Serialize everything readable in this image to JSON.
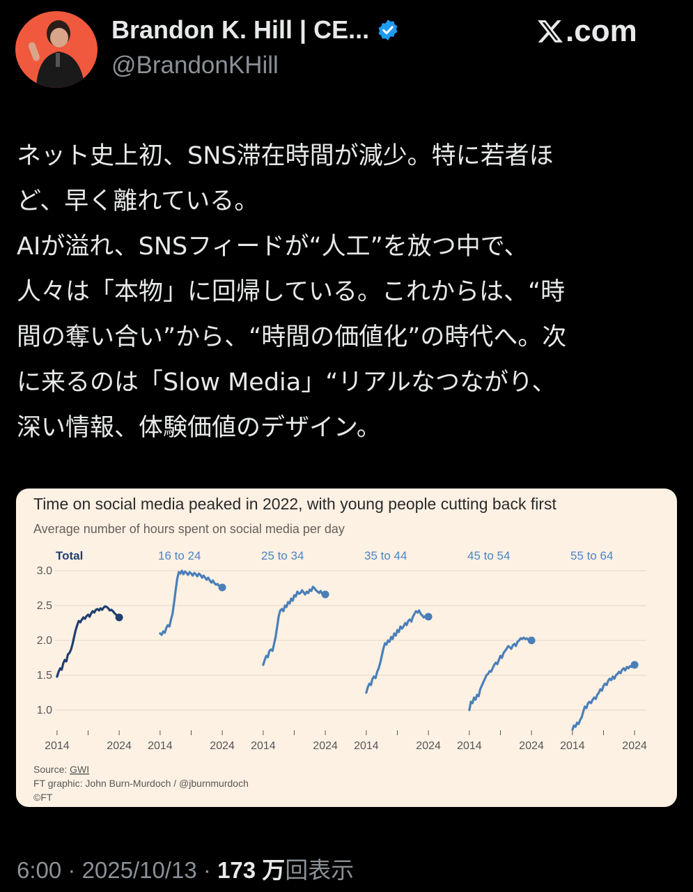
{
  "author": {
    "name": "Brandon K. Hill | CE...",
    "handle": "@BrandonKHill",
    "verified_icon": "verified-badge-icon",
    "avatar_bg": "#f0593d"
  },
  "site": {
    "label": ".com",
    "logo": "x-logo-icon"
  },
  "tweet": {
    "lines": [
      "ネット史上初、SNS滞在時間が減少。特に若者ほ",
      "ど、早く離れている。",
      "AIが溢れ、SNSフィードが“人工”を放つ中で、",
      "人々は「本物」に回帰している。これからは、“時",
      "間の奪い合い”から、“時間の価値化”の時代へ。次",
      "に来るのは「Slow Media」“リアルなつながり、",
      "深い情報、体験価値のデザイン。"
    ]
  },
  "meta": {
    "time": "6:00",
    "sep1": " · ",
    "date": "2025/10/13",
    "sep2": " · ",
    "views_num": "173 万",
    "views_label": "回表示"
  },
  "chart_data": {
    "type": "line",
    "title": "Time on social media peaked in 2022, with young people cutting back first",
    "subtitle": "Average number of hours spent on social media per day",
    "ylim": [
      0.7,
      3.0
    ],
    "yticks": [
      "3.0",
      "2.5",
      "2.0",
      "1.5",
      "1.0"
    ],
    "ytick_values": [
      3.0,
      2.5,
      2.0,
      1.5,
      1.0
    ],
    "xlim": [
      2013.9,
      2024.1
    ],
    "xtick_labels": [
      "2014",
      "2024"
    ],
    "grid": true,
    "colors": {
      "total": "#1f3f6e",
      "age": "#4a7fb8",
      "label_age": "#4a84c4",
      "background": "#fdf1e4"
    },
    "panels": [
      {
        "name": "Total",
        "x": [
          2014,
          2014.25,
          2014.5,
          2014.75,
          2015,
          2015.25,
          2015.5,
          2015.75,
          2016,
          2016.25,
          2016.5,
          2016.75,
          2017,
          2017.25,
          2017.5,
          2017.75,
          2018,
          2018.25,
          2018.5,
          2018.75,
          2019,
          2019.25,
          2019.5,
          2019.75,
          2020,
          2020.25,
          2020.5,
          2020.75,
          2021,
          2021.25,
          2021.5,
          2021.75,
          2022,
          2022.25,
          2022.5,
          2022.75,
          2023,
          2023.25,
          2023.5,
          2023.75,
          2024
        ],
        "values": [
          1.48,
          1.55,
          1.6,
          1.58,
          1.67,
          1.72,
          1.7,
          1.8,
          1.82,
          1.87,
          1.95,
          2.05,
          2.15,
          2.22,
          2.28,
          2.26,
          2.3,
          2.33,
          2.31,
          2.35,
          2.37,
          2.34,
          2.39,
          2.42,
          2.4,
          2.44,
          2.45,
          2.43,
          2.46,
          2.44,
          2.47,
          2.49,
          2.48,
          2.46,
          2.43,
          2.44,
          2.42,
          2.39,
          2.37,
          2.35,
          2.33
        ]
      },
      {
        "name": "16 to 24",
        "x": [
          2014,
          2014.25,
          2014.5,
          2014.75,
          2015,
          2015.25,
          2015.5,
          2015.75,
          2016,
          2016.25,
          2016.5,
          2016.75,
          2017,
          2017.25,
          2017.5,
          2017.75,
          2018,
          2018.25,
          2018.5,
          2018.75,
          2019,
          2019.25,
          2019.5,
          2019.75,
          2020,
          2020.25,
          2020.5,
          2020.75,
          2021,
          2021.25,
          2021.5,
          2021.75,
          2022,
          2022.25,
          2022.5,
          2022.75,
          2023,
          2023.25,
          2023.5,
          2023.75,
          2024
        ],
        "values": [
          2.1,
          2.08,
          2.13,
          2.11,
          2.18,
          2.22,
          2.2,
          2.3,
          2.38,
          2.55,
          2.72,
          2.88,
          2.98,
          2.96,
          3.0,
          2.95,
          2.99,
          2.97,
          2.94,
          2.98,
          2.96,
          2.93,
          2.97,
          2.95,
          2.92,
          2.96,
          2.94,
          2.9,
          2.93,
          2.9,
          2.87,
          2.9,
          2.86,
          2.83,
          2.86,
          2.82,
          2.8,
          2.81,
          2.78,
          2.77,
          2.76
        ]
      },
      {
        "name": "25 to 34",
        "x": [
          2014,
          2014.25,
          2014.5,
          2014.75,
          2015,
          2015.25,
          2015.5,
          2015.75,
          2016,
          2016.25,
          2016.5,
          2016.75,
          2017,
          2017.25,
          2017.5,
          2017.75,
          2018,
          2018.25,
          2018.5,
          2018.75,
          2019,
          2019.25,
          2019.5,
          2019.75,
          2020,
          2020.25,
          2020.5,
          2020.75,
          2021,
          2021.25,
          2021.5,
          2021.75,
          2022,
          2022.25,
          2022.5,
          2022.75,
          2023,
          2023.25,
          2023.5,
          2023.75,
          2024
        ],
        "values": [
          1.65,
          1.72,
          1.78,
          1.76,
          1.85,
          1.87,
          1.85,
          1.95,
          2.05,
          2.2,
          2.35,
          2.43,
          2.45,
          2.42,
          2.5,
          2.48,
          2.55,
          2.53,
          2.6,
          2.57,
          2.65,
          2.63,
          2.7,
          2.67,
          2.68,
          2.72,
          2.69,
          2.66,
          2.7,
          2.68,
          2.73,
          2.71,
          2.77,
          2.75,
          2.72,
          2.7,
          2.68,
          2.71,
          2.67,
          2.65,
          2.66
        ]
      },
      {
        "name": "35 to 44",
        "x": [
          2014,
          2014.25,
          2014.5,
          2014.75,
          2015,
          2015.25,
          2015.5,
          2015.75,
          2016,
          2016.25,
          2016.5,
          2016.75,
          2017,
          2017.25,
          2017.5,
          2017.75,
          2018,
          2018.25,
          2018.5,
          2018.75,
          2019,
          2019.25,
          2019.5,
          2019.75,
          2020,
          2020.25,
          2020.5,
          2020.75,
          2021,
          2021.25,
          2021.5,
          2021.75,
          2022,
          2022.25,
          2022.5,
          2022.75,
          2023,
          2023.25,
          2023.5,
          2023.75,
          2024
        ],
        "values": [
          1.25,
          1.33,
          1.38,
          1.36,
          1.45,
          1.48,
          1.46,
          1.55,
          1.6,
          1.68,
          1.78,
          1.88,
          1.96,
          1.94,
          2.0,
          1.98,
          2.05,
          2.02,
          2.1,
          2.07,
          2.15,
          2.12,
          2.2,
          2.17,
          2.2,
          2.25,
          2.22,
          2.28,
          2.3,
          2.27,
          2.34,
          2.38,
          2.42,
          2.4,
          2.43,
          2.38,
          2.36,
          2.33,
          2.35,
          2.33,
          2.34
        ]
      },
      {
        "name": "45 to 54",
        "x": [
          2014,
          2014.25,
          2014.5,
          2014.75,
          2015,
          2015.25,
          2015.5,
          2015.75,
          2016,
          2016.25,
          2016.5,
          2016.75,
          2017,
          2017.25,
          2017.5,
          2017.75,
          2018,
          2018.25,
          2018.5,
          2018.75,
          2019,
          2019.25,
          2019.5,
          2019.75,
          2020,
          2020.25,
          2020.5,
          2020.75,
          2021,
          2021.25,
          2021.5,
          2021.75,
          2022,
          2022.25,
          2022.5,
          2022.75,
          2023,
          2023.25,
          2023.5,
          2023.75,
          2024
        ],
        "values": [
          1.0,
          1.12,
          1.1,
          1.18,
          1.15,
          1.22,
          1.2,
          1.3,
          1.35,
          1.4,
          1.45,
          1.5,
          1.52,
          1.56,
          1.55,
          1.6,
          1.65,
          1.68,
          1.66,
          1.72,
          1.78,
          1.75,
          1.82,
          1.85,
          1.88,
          1.92,
          1.9,
          1.88,
          1.93,
          1.95,
          1.92,
          1.98,
          2.0,
          2.03,
          2.02,
          2.04,
          2.02,
          2.03,
          2.01,
          2.0,
          2.0
        ]
      },
      {
        "name": "55 to 64",
        "x": [
          2014,
          2014.25,
          2014.5,
          2014.75,
          2015,
          2015.25,
          2015.5,
          2015.75,
          2016,
          2016.25,
          2016.5,
          2016.75,
          2017,
          2017.25,
          2017.5,
          2017.75,
          2018,
          2018.25,
          2018.5,
          2018.75,
          2019,
          2019.25,
          2019.5,
          2019.75,
          2020,
          2020.25,
          2020.5,
          2020.75,
          2021,
          2021.25,
          2021.5,
          2021.75,
          2022,
          2022.25,
          2022.5,
          2022.75,
          2023,
          2023.25,
          2023.5,
          2023.75,
          2024
        ],
        "values": [
          0.72,
          0.78,
          0.76,
          0.82,
          0.8,
          0.86,
          0.9,
          0.98,
          1.05,
          1.03,
          1.1,
          1.12,
          1.1,
          1.15,
          1.18,
          1.16,
          1.22,
          1.25,
          1.3,
          1.28,
          1.35,
          1.38,
          1.36,
          1.42,
          1.45,
          1.43,
          1.48,
          1.45,
          1.5,
          1.52,
          1.55,
          1.53,
          1.58,
          1.6,
          1.57,
          1.62,
          1.6,
          1.63,
          1.62,
          1.64,
          1.65
        ]
      }
    ],
    "source_label": "Source: ",
    "source_link": "GWI",
    "credit": "FT graphic: John Burn-Murdoch / @jburnmurdoch",
    "copyright": "©FT"
  }
}
